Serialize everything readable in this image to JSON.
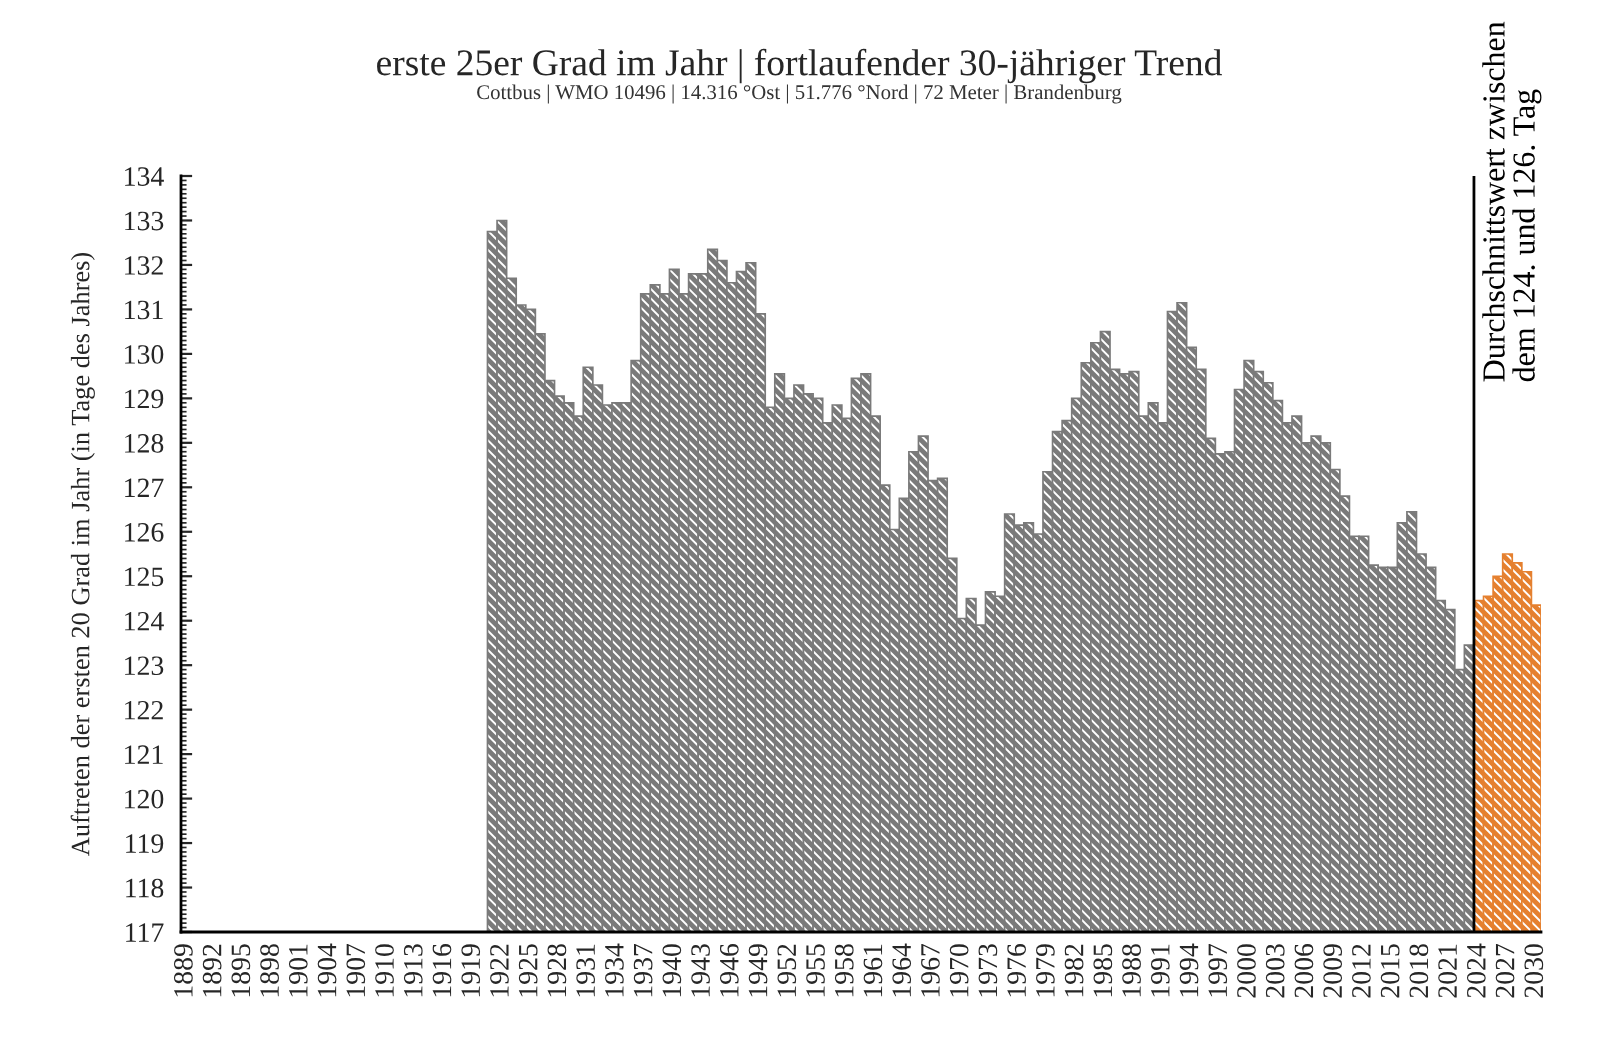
{
  "chart_data": {
    "type": "bar",
    "title": "erste 25er Grad im Jahr | fortlaufender 30-jähriger Trend",
    "subtitle": "Cottbus | WMO 10496 | 14.316 °Ost | 51.776 °Nord | 72 Meter | Brandenburg",
    "ylabel": "Auftreten der ersten 20 Grad im Jahr (in Tage des Jahres)",
    "series": [
      {
        "color": "#7a7a7a",
        "x": [
          1921,
          1922,
          1923,
          1924,
          1925,
          1926,
          1927,
          1928,
          1929,
          1930,
          1931,
          1932,
          1933,
          1934,
          1935,
          1936,
          1937,
          1938,
          1939,
          1940,
          1941,
          1942,
          1943,
          1944,
          1945,
          1946,
          1947,
          1948,
          1949,
          1950,
          1951,
          1952,
          1953,
          1954,
          1955,
          1956,
          1957,
          1958,
          1959,
          1960,
          1961,
          1962,
          1963,
          1964,
          1965,
          1966,
          1967,
          1968,
          1969,
          1970,
          1971,
          1972,
          1973,
          1974,
          1975,
          1976,
          1977,
          1978,
          1979,
          1980,
          1981,
          1982,
          1983,
          1984,
          1985,
          1986,
          1987,
          1988,
          1989,
          1990,
          1991,
          1992,
          1993,
          1994,
          1995,
          1996,
          1997,
          1998,
          1999,
          2000,
          2001,
          2002,
          2003,
          2004,
          2005,
          2006,
          2007,
          2008,
          2009,
          2010,
          2011,
          2012,
          2013,
          2014,
          2015,
          2016,
          2017,
          2018,
          2019,
          2020,
          2021,
          2022,
          2023
        ],
        "values": [
          132.75,
          133.0,
          131.7,
          131.1,
          131.0,
          130.45,
          129.4,
          129.05,
          128.9,
          128.6,
          129.7,
          129.3,
          128.85,
          128.9,
          128.9,
          129.85,
          131.35,
          131.55,
          131.35,
          131.9,
          131.35,
          131.8,
          131.8,
          132.35,
          132.1,
          131.6,
          131.85,
          132.05,
          130.9,
          128.8,
          129.55,
          129.0,
          129.3,
          129.1,
          129.0,
          128.45,
          128.85,
          128.55,
          129.45,
          129.55,
          128.6,
          127.05,
          126.05,
          126.75,
          127.8,
          128.15,
          127.15,
          127.2,
          125.4,
          124.05,
          124.5,
          123.9,
          124.65,
          124.55,
          126.4,
          126.15,
          126.2,
          125.95,
          127.35,
          128.25,
          128.5,
          129.0,
          129.8,
          130.25,
          130.5,
          129.65,
          129.55,
          129.6,
          128.6,
          128.9,
          128.45,
          130.95,
          131.15,
          130.15,
          129.65,
          128.1,
          127.75,
          127.8,
          129.2,
          129.85,
          129.6,
          129.35,
          128.95,
          128.45,
          128.6,
          128.0,
          128.15,
          128.0,
          127.4,
          126.8,
          125.9,
          125.9,
          125.25,
          125.2,
          125.2,
          126.2,
          126.45,
          125.5,
          125.2,
          124.45,
          124.25,
          122.9,
          123.45
        ]
      },
      {
        "color": "#e5802f",
        "x": [
          2024,
          2025,
          2026,
          2027,
          2028,
          2029,
          2030
        ],
        "values": [
          124.45,
          124.55,
          125.0,
          125.5,
          125.3,
          125.1,
          124.35
        ]
      }
    ],
    "xlim": [
      1888.5,
      2030.5
    ],
    "xticks": [
      1889,
      1892,
      1895,
      1898,
      1901,
      1904,
      1907,
      1910,
      1913,
      1916,
      1919,
      1922,
      1925,
      1928,
      1931,
      1934,
      1937,
      1940,
      1943,
      1946,
      1949,
      1952,
      1955,
      1958,
      1961,
      1964,
      1967,
      1970,
      1973,
      1976,
      1979,
      1982,
      1985,
      1988,
      1991,
      1994,
      1997,
      2000,
      2003,
      2006,
      2009,
      2012,
      2015,
      2018,
      2021,
      2024,
      2027,
      2030
    ],
    "ylim": [
      117,
      134
    ],
    "yticks": [
      117,
      118,
      119,
      120,
      121,
      122,
      123,
      124,
      125,
      126,
      127,
      128,
      129,
      130,
      131,
      132,
      133,
      134
    ],
    "ref_lines": [
      {
        "axis": "x",
        "value": 2023.5,
        "label": "Durchschnittswert zwischen dem 124. und 126. Tag",
        "color": "#000000"
      }
    ]
  }
}
